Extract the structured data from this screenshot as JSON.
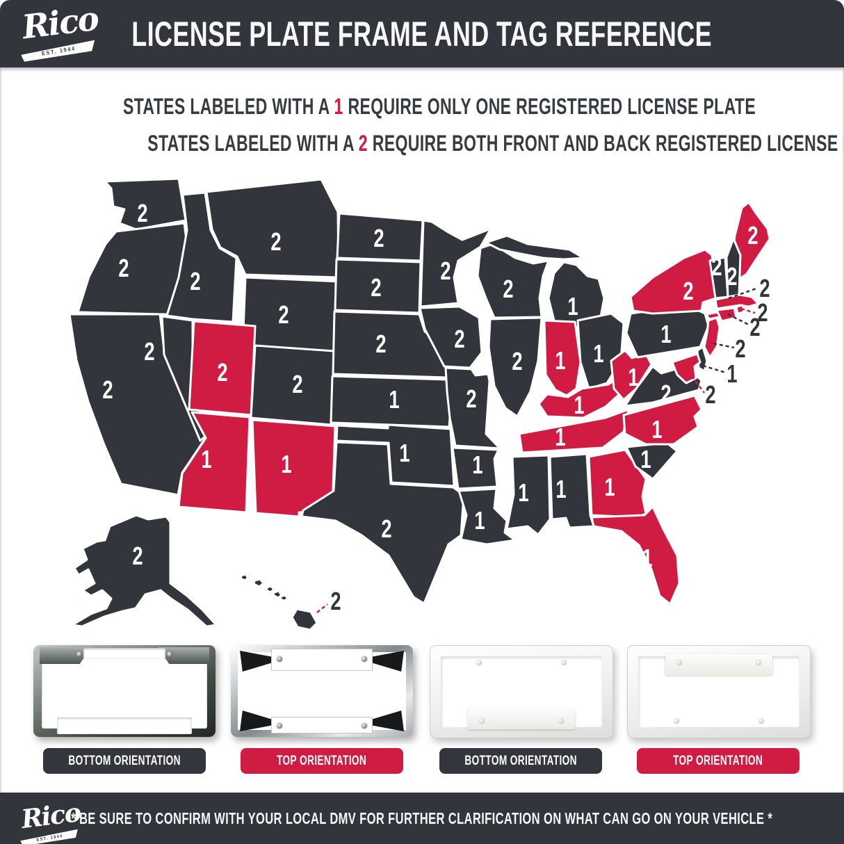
{
  "brand": {
    "name": "Rico",
    "est": "EST. 1944"
  },
  "header": {
    "title": "LICENSE PLATE FRAME AND TAG REFERENCE"
  },
  "legend": {
    "line1_pre": "STATES LABELED WITH A ",
    "line1_num": "1",
    "line1_post": " REQUIRE ONLY ONE REGISTERED LICENSE PLATE",
    "line2_pre": "STATES LABELED WITH A ",
    "line2_num": "2",
    "line2_post": " REQUIRE BOTH FRONT AND BACK REGISTERED LICENSE PLATES"
  },
  "colors": {
    "dark": "#32363c",
    "red": "#d01c42",
    "white": "#ffffff"
  },
  "map": {
    "states": [
      {
        "id": "WA",
        "name": "Washington",
        "plates": "2",
        "color": "dark"
      },
      {
        "id": "OR",
        "name": "Oregon",
        "plates": "2",
        "color": "dark"
      },
      {
        "id": "CA",
        "name": "California",
        "plates": "2",
        "color": "dark"
      },
      {
        "id": "NV",
        "name": "Nevada",
        "plates": "2",
        "color": "dark"
      },
      {
        "id": "ID",
        "name": "Idaho",
        "plates": "2",
        "color": "dark"
      },
      {
        "id": "MT",
        "name": "Montana",
        "plates": "2",
        "color": "dark"
      },
      {
        "id": "WY",
        "name": "Wyoming",
        "plates": "2",
        "color": "dark"
      },
      {
        "id": "UT",
        "name": "Utah",
        "plates": "2",
        "color": "red"
      },
      {
        "id": "CO",
        "name": "Colorado",
        "plates": "2",
        "color": "dark"
      },
      {
        "id": "AZ",
        "name": "Arizona",
        "plates": "1",
        "color": "red"
      },
      {
        "id": "NM",
        "name": "New Mexico",
        "plates": "1",
        "color": "red"
      },
      {
        "id": "ND",
        "name": "North Dakota",
        "plates": "2",
        "color": "dark"
      },
      {
        "id": "SD",
        "name": "South Dakota",
        "plates": "2",
        "color": "dark"
      },
      {
        "id": "NE",
        "name": "Nebraska",
        "plates": "2",
        "color": "dark"
      },
      {
        "id": "KS",
        "name": "Kansas",
        "plates": "1",
        "color": "dark"
      },
      {
        "id": "OK",
        "name": "Oklahoma",
        "plates": "1",
        "color": "dark"
      },
      {
        "id": "TX",
        "name": "Texas",
        "plates": "2",
        "color": "dark"
      },
      {
        "id": "MN",
        "name": "Minnesota",
        "plates": "2",
        "color": "dark"
      },
      {
        "id": "IA",
        "name": "Iowa",
        "plates": "2",
        "color": "dark"
      },
      {
        "id": "MO",
        "name": "Missouri",
        "plates": "2",
        "color": "dark"
      },
      {
        "id": "AR",
        "name": "Arkansas",
        "plates": "1",
        "color": "dark"
      },
      {
        "id": "LA",
        "name": "Louisiana",
        "plates": "1",
        "color": "dark"
      },
      {
        "id": "WI",
        "name": "Wisconsin",
        "plates": "2",
        "color": "dark"
      },
      {
        "id": "IL",
        "name": "Illinois",
        "plates": "2",
        "color": "dark"
      },
      {
        "id": "MI",
        "name": "Michigan",
        "plates": "1",
        "color": "dark"
      },
      {
        "id": "IN",
        "name": "Indiana",
        "plates": "1",
        "color": "red"
      },
      {
        "id": "OH",
        "name": "Ohio",
        "plates": "1",
        "color": "dark"
      },
      {
        "id": "KY",
        "name": "Kentucky",
        "plates": "1",
        "color": "red"
      },
      {
        "id": "TN",
        "name": "Tennessee",
        "plates": "1",
        "color": "red"
      },
      {
        "id": "MS",
        "name": "Mississippi",
        "plates": "1",
        "color": "dark"
      },
      {
        "id": "AL",
        "name": "Alabama",
        "plates": "1",
        "color": "dark"
      },
      {
        "id": "GA",
        "name": "Georgia",
        "plates": "1",
        "color": "red"
      },
      {
        "id": "FL",
        "name": "Florida",
        "plates": "1",
        "color": "red"
      },
      {
        "id": "SC",
        "name": "South Carolina",
        "plates": "1",
        "color": "dark"
      },
      {
        "id": "NC",
        "name": "North Carolina",
        "plates": "1",
        "color": "red"
      },
      {
        "id": "VA",
        "name": "Virginia",
        "plates": "2",
        "color": "dark"
      },
      {
        "id": "WV",
        "name": "West Virginia",
        "plates": "1",
        "color": "red"
      },
      {
        "id": "PA",
        "name": "Pennsylvania",
        "plates": "1",
        "color": "dark"
      },
      {
        "id": "NY",
        "name": "New York",
        "plates": "2",
        "color": "red"
      },
      {
        "id": "ME",
        "name": "Maine",
        "plates": "2",
        "color": "red"
      },
      {
        "id": "VT",
        "name": "Vermont",
        "plates": "2",
        "color": "dark"
      },
      {
        "id": "NH",
        "name": "New Hampshire",
        "plates": "2",
        "color": "dark"
      },
      {
        "id": "MA",
        "name": "Massachusetts",
        "plates": "2",
        "color": "red"
      },
      {
        "id": "RI",
        "name": "Rhode Island",
        "plates": "2",
        "color": "red"
      },
      {
        "id": "CT",
        "name": "Connecticut",
        "plates": "2",
        "color": "red"
      },
      {
        "id": "NJ",
        "name": "New Jersey",
        "plates": "2",
        "color": "red"
      },
      {
        "id": "DE",
        "name": "Delaware",
        "plates": "1",
        "color": "dark"
      },
      {
        "id": "MD",
        "name": "Maryland",
        "plates": "2",
        "color": "red"
      },
      {
        "id": "AK",
        "name": "Alaska",
        "plates": "2",
        "color": "dark"
      },
      {
        "id": "HI",
        "name": "Hawaii",
        "plates": "2",
        "color": "dark"
      }
    ]
  },
  "frames": [
    {
      "label": "BOTTOM ORIENTATION",
      "style": "dark"
    },
    {
      "label": "TOP ORIENTATION",
      "style": "red"
    },
    {
      "label": "BOTTOM ORIENTATION",
      "style": "dark"
    },
    {
      "label": "TOP ORIENTATION",
      "style": "red"
    }
  ],
  "footer": {
    "disclaimer": "* BE SURE TO CONFIRM WITH YOUR LOCAL DMV FOR FURTHER CLARIFICATION ON WHAT CAN GO ON YOUR VEHICLE *"
  }
}
